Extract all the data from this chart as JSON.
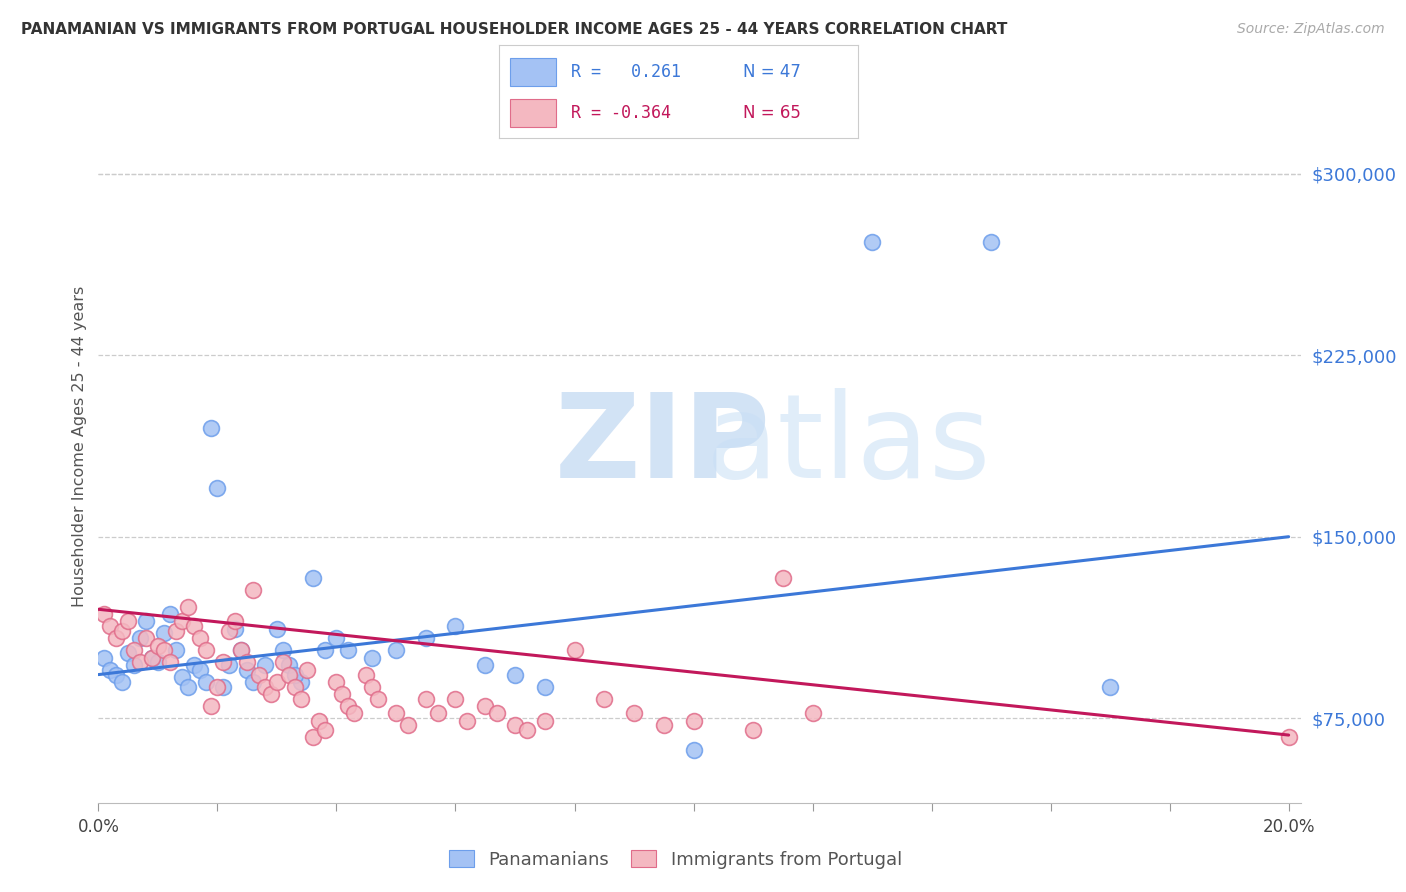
{
  "title": "PANAMANIAN VS IMMIGRANTS FROM PORTUGAL HOUSEHOLDER INCOME AGES 25 - 44 YEARS CORRELATION CHART",
  "source": "Source: ZipAtlas.com",
  "ylabel": "Householder Income Ages 25 - 44 years",
  "right_yticks": [
    75000,
    150000,
    225000,
    300000
  ],
  "right_yticklabels": [
    "$75,000",
    "$150,000",
    "$225,000",
    "$300,000"
  ],
  "legend_r1": "R =   0.261",
  "legend_n1": "N = 47",
  "legend_r2": "R = -0.364",
  "legend_n2": "N = 65",
  "blue_color": "#a4c2f4",
  "pink_color": "#f4b8c1",
  "blue_edge_color": "#6d9eeb",
  "pink_edge_color": "#e06c8a",
  "blue_line_color": "#3c78d8",
  "pink_line_color": "#c2185b",
  "label1": "Panamanians",
  "label2": "Immigrants from Portugal",
  "blue_scatter_x": [
    0.001,
    0.002,
    0.003,
    0.004,
    0.005,
    0.006,
    0.007,
    0.008,
    0.009,
    0.01,
    0.011,
    0.012,
    0.013,
    0.014,
    0.015,
    0.016,
    0.017,
    0.018,
    0.019,
    0.02,
    0.021,
    0.022,
    0.023,
    0.025,
    0.026,
    0.028,
    0.03,
    0.031,
    0.032,
    0.034,
    0.036,
    0.038,
    0.04,
    0.042,
    0.046,
    0.05,
    0.055,
    0.06,
    0.065,
    0.07,
    0.075,
    0.1,
    0.024,
    0.13,
    0.15,
    0.17,
    0.033
  ],
  "blue_scatter_y": [
    100000,
    95000,
    93000,
    90000,
    102000,
    97000,
    108000,
    115000,
    100000,
    98000,
    110000,
    118000,
    103000,
    92000,
    88000,
    97000,
    95000,
    90000,
    195000,
    170000,
    88000,
    97000,
    112000,
    95000,
    90000,
    97000,
    112000,
    103000,
    97000,
    90000,
    133000,
    103000,
    108000,
    103000,
    100000,
    103000,
    108000,
    113000,
    97000,
    93000,
    88000,
    62000,
    103000,
    272000,
    272000,
    88000,
    93000
  ],
  "pink_scatter_x": [
    0.001,
    0.002,
    0.003,
    0.004,
    0.005,
    0.006,
    0.007,
    0.008,
    0.009,
    0.01,
    0.011,
    0.012,
    0.013,
    0.014,
    0.015,
    0.016,
    0.017,
    0.018,
    0.019,
    0.02,
    0.021,
    0.022,
    0.023,
    0.024,
    0.025,
    0.026,
    0.027,
    0.028,
    0.029,
    0.03,
    0.031,
    0.032,
    0.033,
    0.034,
    0.035,
    0.036,
    0.037,
    0.038,
    0.04,
    0.041,
    0.042,
    0.043,
    0.045,
    0.046,
    0.047,
    0.05,
    0.052,
    0.055,
    0.057,
    0.06,
    0.062,
    0.065,
    0.067,
    0.07,
    0.072,
    0.075,
    0.08,
    0.085,
    0.09,
    0.095,
    0.1,
    0.11,
    0.115,
    0.12,
    0.2
  ],
  "pink_scatter_y": [
    118000,
    113000,
    108000,
    111000,
    115000,
    103000,
    98000,
    108000,
    100000,
    105000,
    103000,
    98000,
    111000,
    115000,
    121000,
    113000,
    108000,
    103000,
    80000,
    88000,
    98000,
    111000,
    115000,
    103000,
    98000,
    128000,
    93000,
    88000,
    85000,
    90000,
    98000,
    93000,
    88000,
    83000,
    95000,
    67000,
    74000,
    70000,
    90000,
    85000,
    80000,
    77000,
    93000,
    88000,
    83000,
    77000,
    72000,
    83000,
    77000,
    83000,
    74000,
    80000,
    77000,
    72000,
    70000,
    74000,
    103000,
    83000,
    77000,
    72000,
    74000,
    70000,
    133000,
    77000,
    67000
  ],
  "blue_trend_x": [
    0.0,
    0.2
  ],
  "blue_trend_y": [
    93000,
    150000
  ],
  "pink_trend_x": [
    0.0,
    0.2
  ],
  "pink_trend_y": [
    120000,
    68000
  ],
  "xmin": 0.0,
  "xmax": 0.202,
  "ymin": 40000,
  "ymax": 335000
}
